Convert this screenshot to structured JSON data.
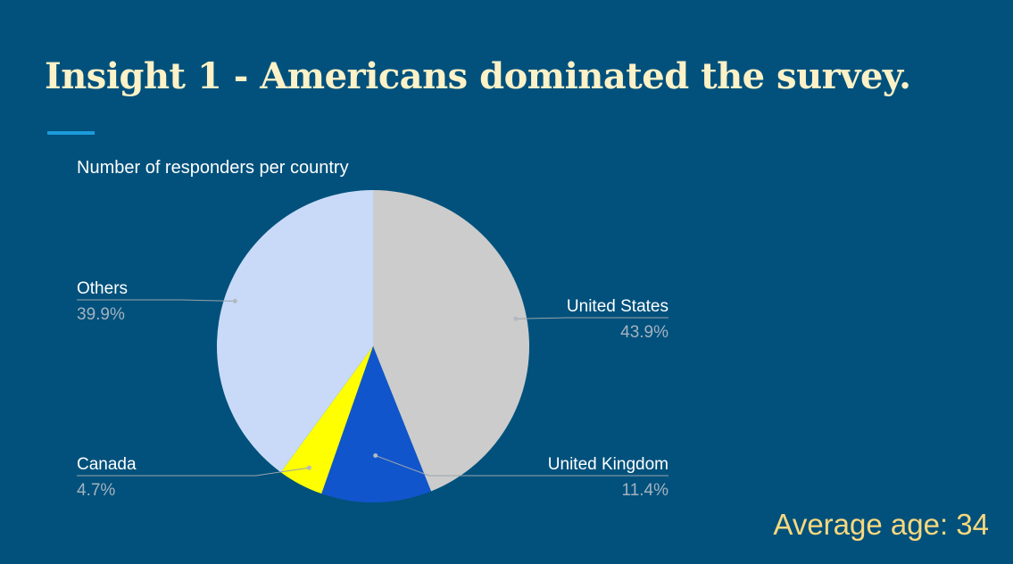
{
  "slide": {
    "title": "Insight 1 - Americans dominated the survey.",
    "note": "Average age: 34"
  },
  "chart_data": {
    "type": "pie",
    "title": "Number of responders per country",
    "slices": [
      {
        "name": "United States",
        "value": 43.9,
        "label": "43.9%",
        "color": "#cccccc"
      },
      {
        "name": "United Kingdom",
        "value": 11.4,
        "label": "11.4%",
        "color": "#1155cc"
      },
      {
        "name": "Canada",
        "value": 4.7,
        "label": "4.7%",
        "color": "#ffff00"
      },
      {
        "name": "Others",
        "value": 39.9,
        "label": "39.9%",
        "color": "#c9daf8"
      }
    ],
    "start_angle_deg": 0,
    "direction": "clockwise",
    "legend": "none",
    "labels": "outside with leader lines"
  },
  "colors": {
    "background": "#01517c",
    "title": "#fdf1c7",
    "accent": "#1c9bdb",
    "note": "#f8d87e"
  }
}
